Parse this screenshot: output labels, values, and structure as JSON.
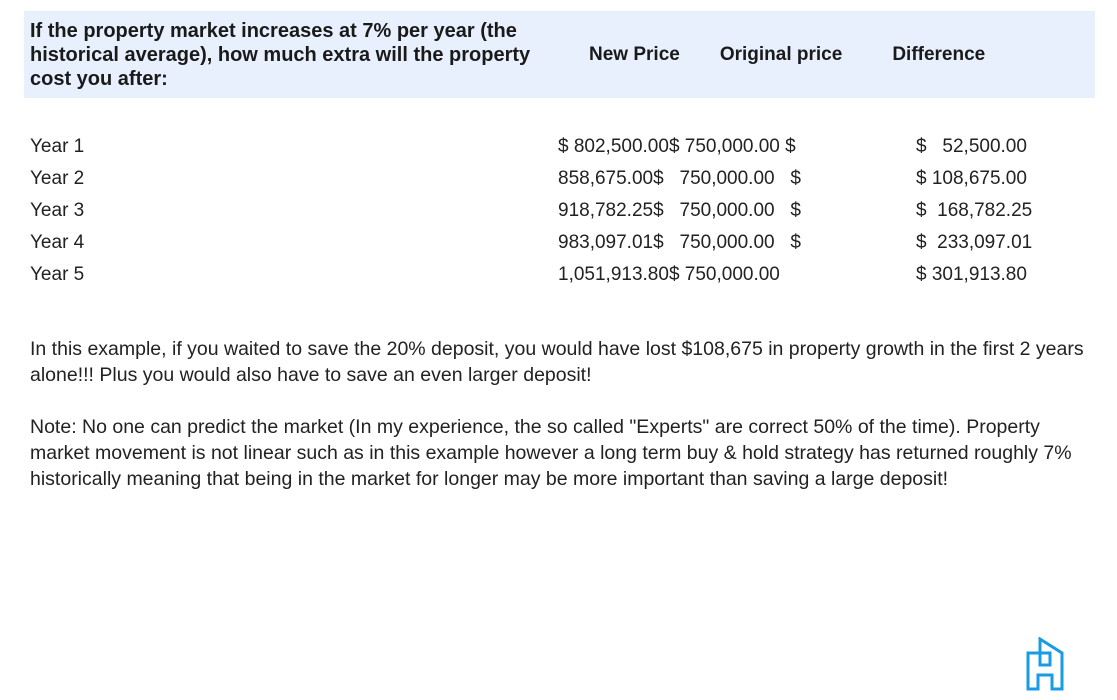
{
  "header": {
    "question": "If the property market increases at 7% per year (the historical average), how much extra will the property cost you after:",
    "columns": [
      "New Price",
      "Original price",
      "Difference"
    ]
  },
  "rows": [
    {
      "label": "Year 1",
      "prices": "$ 802,500.00$ 750,000.00 $",
      "difference": "$   52,500.00"
    },
    {
      "label": "Year 2",
      "prices": "858,675.00$   750,000.00   $",
      "difference": "$ 108,675.00"
    },
    {
      "label": "Year 3",
      "prices": "918,782.25$   750,000.00   $",
      "difference": "$  168,782.25"
    },
    {
      "label": "Year 4",
      "prices": "983,097.01$   750,000.00   $",
      "difference": "$  233,097.01"
    },
    {
      "label": "Year 5",
      "prices": "1,051,913.80$ 750,000.00",
      "difference": "$ 301,913.80"
    }
  ],
  "paragraphs": [
    "In this example, if you waited to save the 20% deposit, you would have lost $108,675 in property growth in the first 2 years alone!!! Plus you would also have to save an even larger deposit!",
    "Note: No one can predict the market (In my experience, the so called \"Experts\" are correct 50% of the time). Property market movement is not linear such as in this example however a long term buy & hold strategy has returned roughly 7% historically meaning that being in the market for longer may be more important than saving a large deposit!"
  ],
  "colors": {
    "header_bg": "#e8f0fd",
    "logo": "#1a9be6"
  },
  "logo_icon": "building-logo-icon"
}
